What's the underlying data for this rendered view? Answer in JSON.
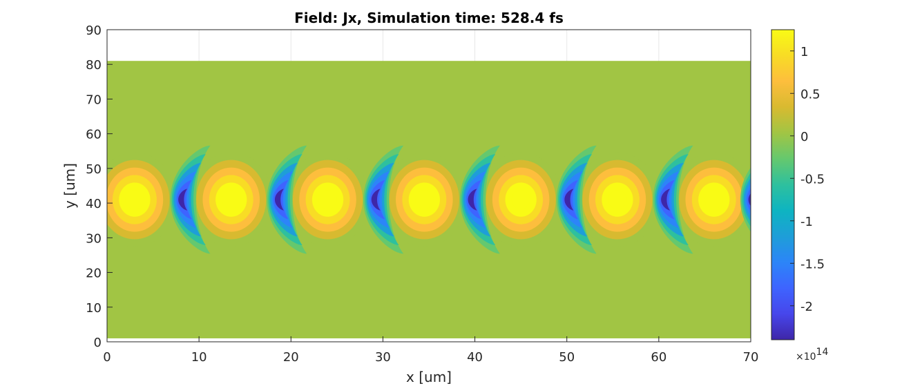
{
  "chart_data": {
    "type": "heatmap",
    "title": "Field: Jx, Simulation time: 528.4 fs",
    "xlabel": "x [um]",
    "ylabel": "y [um]",
    "xlim": [
      0,
      70
    ],
    "ylim": [
      0,
      90
    ],
    "x_ticks": [
      "0",
      "10",
      "20",
      "30",
      "40",
      "50",
      "60",
      "70"
    ],
    "y_ticks": [
      "0",
      "10",
      "20",
      "30",
      "40",
      "50",
      "60",
      "70",
      "80",
      "90"
    ],
    "grid": true,
    "field_extent": {
      "x": [
        0,
        70
      ],
      "y": [
        1,
        81
      ]
    },
    "beam": {
      "center_y": 41,
      "wavelength_x": 10.5,
      "positive_peaks_x": [
        3,
        13.5,
        24,
        34.5,
        45,
        55.5,
        66
      ],
      "negative_peaks_x": [
        8,
        18.5,
        29,
        39.5,
        50,
        60.5,
        70
      ],
      "max_value": 120000000000000.0,
      "min_value": -230000000000000.0
    },
    "colorbar": {
      "position": "right",
      "range": [
        -2.4,
        1.25
      ],
      "ticks": [
        "1",
        "0.5",
        "0",
        "-0.5",
        "-1",
        "-1.5",
        "-2"
      ],
      "multiplier_base": "×10",
      "multiplier_exponent": "14",
      "colormap": "parula",
      "colors": [
        "#3e26a8",
        "#4746eb",
        "#3e64ff",
        "#2c85f8",
        "#1e9ed8",
        "#0eb4c1",
        "#2ec09e",
        "#65c86e",
        "#a1c544",
        "#d8ba30",
        "#fdbe3d",
        "#f8dc25",
        "#f9fb15"
      ]
    }
  }
}
